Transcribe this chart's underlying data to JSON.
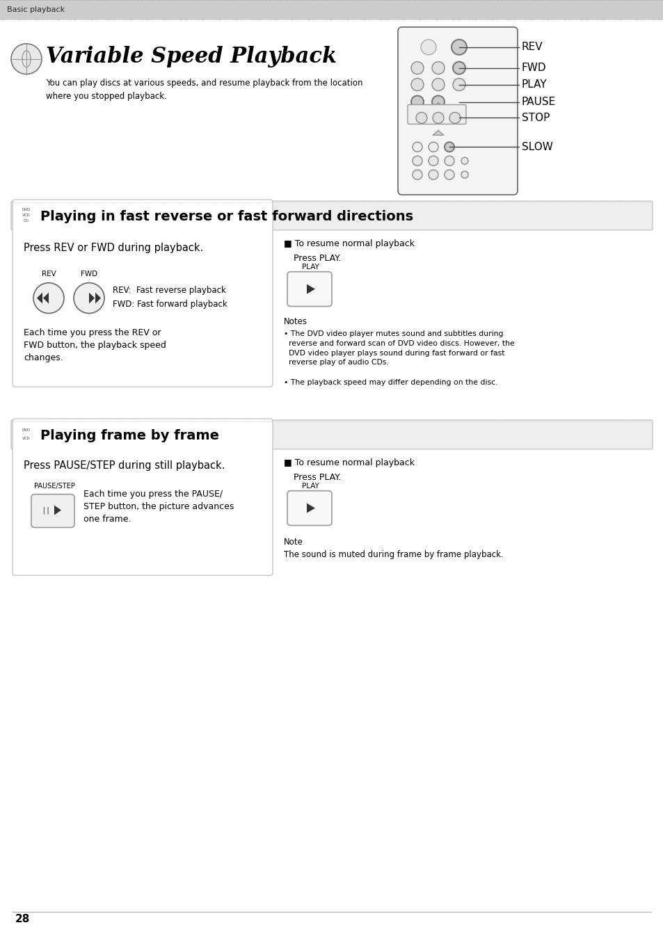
{
  "bg_color": "#ffffff",
  "header_text": "Basic playback",
  "title": "Variable Speed Playback",
  "subtitle": "You can play discs at various speeds, and resume playback from the location\nwhere you stopped playback.",
  "section1_title": "Playing in fast reverse or fast forward directions",
  "section1_box_text1": "Press REV or FWD during playback.",
  "section1_box_label1": "REV",
  "section1_box_label2": "FWD",
  "section1_box_desc1": "REV:  Fast reverse playback",
  "section1_box_desc2": "FWD: Fast forward playback",
  "section1_box_desc3": "Each time you press the REV or\nFWD button, the playback speed\nchanges.",
  "section1_right_title": "■ To resume normal playback",
  "section1_right_press": "Press PLAY.",
  "section1_right_btn": "PLAY",
  "section1_notes_title": "Notes",
  "section1_note1": "• The DVD video player mutes sound and subtitles during\n  reverse and forward scan of DVD video discs. However, the\n  DVD video player plays sound during fast forward or fast\n  reverse play of audio CDs.",
  "section1_note2": "• The playback speed may differ depending on the disc.",
  "section2_title": "Playing frame by frame",
  "section2_box_text1": "Press PAUSE/STEP during still playback.",
  "section2_box_label1": "PAUSE/STEP",
  "section2_box_desc": "Each time you press the PAUSE/\nSTEP button, the picture advances\none frame.",
  "section2_right_title": "■ To resume normal playback",
  "section2_right_press": "Press PLAY.",
  "section2_right_btn": "PLAY",
  "section2_note_title": "Note",
  "section2_note": "The sound is muted during frame by frame playback.",
  "page_number": "28",
  "remote_labels": [
    "REV",
    "FWD",
    "PLAY",
    "PAUSE",
    "STOP",
    "SLOW"
  ]
}
